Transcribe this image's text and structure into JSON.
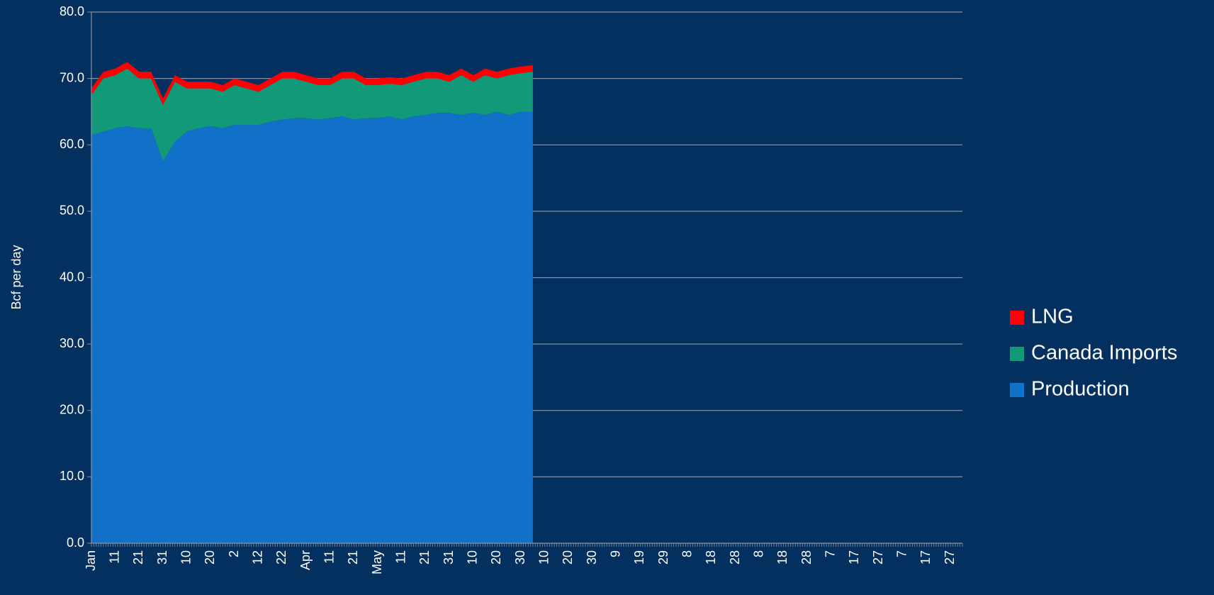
{
  "chart_data": {
    "type": "stacked_area",
    "ylabel": "Bcf per day",
    "categories": [
      "Jan",
      null,
      "11",
      null,
      "21",
      null,
      "31",
      null,
      "10",
      null,
      "20",
      null,
      "2",
      null,
      "12",
      null,
      "22",
      null,
      "Apr",
      null,
      "11",
      null,
      "21",
      null,
      "May",
      null,
      "11",
      null,
      "21",
      null,
      "31",
      null,
      "10",
      null,
      "20",
      null,
      "30",
      null,
      "10",
      null,
      "20",
      null,
      "30",
      null,
      "9",
      null,
      "19",
      null,
      "29",
      null,
      "8",
      null,
      "18",
      null,
      "28",
      null,
      "8",
      null,
      "18",
      null,
      "28",
      null,
      "7",
      null,
      "17",
      null,
      "27",
      null,
      "7",
      null,
      "17",
      null,
      "27"
    ],
    "series": [
      {
        "name": "Production",
        "color": "#1170c8",
        "values": [
          61.5,
          62,
          62.5,
          62.8,
          62.5,
          62.5,
          57.5,
          60.5,
          62,
          62.5,
          62.8,
          62.5,
          63,
          63,
          63,
          63.5,
          63.8,
          64,
          64,
          63.8,
          64,
          64.3,
          63.8,
          64,
          64,
          64.3,
          63.8,
          64.3,
          64.5,
          64.8,
          64.8,
          64.5,
          64.8,
          64.5,
          65,
          64.5,
          65,
          65,
          null,
          null,
          null,
          null,
          null,
          null,
          null,
          null,
          null,
          null,
          null,
          null,
          null,
          null,
          null,
          null,
          null,
          null,
          null,
          null,
          null,
          null,
          null,
          null,
          null,
          null,
          null,
          null,
          null,
          null,
          null,
          null,
          null,
          null,
          null
        ]
      },
      {
        "name": "Canada Imports",
        "color": "#129a78",
        "values": [
          6.0,
          8.0,
          8.0,
          8.7,
          7.5,
          7.5,
          8.5,
          9.0,
          6.5,
          6.0,
          5.7,
          5.5,
          6.0,
          5.5,
          5.0,
          5.5,
          6.2,
          6.0,
          5.5,
          5.2,
          5.0,
          5.7,
          6.2,
          5.0,
          5.0,
          4.9,
          5.2,
          5.2,
          5.5,
          5.2,
          4.7,
          6.0,
          4.7,
          6.0,
          5.0,
          6.0,
          5.8,
          6.0,
          null,
          null,
          null,
          null,
          null,
          null,
          null,
          null,
          null,
          null,
          null,
          null,
          null,
          null,
          null,
          null,
          null,
          null,
          null,
          null,
          null,
          null,
          null,
          null,
          null,
          null,
          null,
          null,
          null,
          null,
          null,
          null,
          null,
          null,
          null
        ]
      },
      {
        "name": "LNG",
        "color": "#ff0000",
        "values": [
          1.0,
          1.0,
          1.0,
          1.0,
          1.0,
          1.0,
          1.0,
          1.0,
          1.0,
          1.0,
          1.0,
          1.0,
          1.0,
          1.0,
          1.0,
          1.0,
          1.0,
          1.0,
          1.0,
          1.0,
          1.0,
          1.0,
          1.0,
          1.0,
          1.0,
          1.0,
          1.0,
          1.0,
          1.0,
          1.0,
          1.0,
          1.0,
          1.0,
          1.0,
          1.0,
          1.0,
          1.0,
          1.0,
          null,
          null,
          null,
          null,
          null,
          null,
          null,
          null,
          null,
          null,
          null,
          null,
          null,
          null,
          null,
          null,
          null,
          null,
          null,
          null,
          null,
          null,
          null,
          null,
          null,
          null,
          null,
          null,
          null,
          null,
          null,
          null,
          null,
          null,
          null
        ]
      }
    ],
    "ylim": [
      0,
      80
    ],
    "yticks": [
      {
        "value": 0,
        "label": "0.0"
      },
      {
        "value": 10,
        "label": "10.0"
      },
      {
        "value": 20,
        "label": "20.0"
      },
      {
        "value": 30,
        "label": "30.0"
      },
      {
        "value": 40,
        "label": "40.0"
      },
      {
        "value": 50,
        "label": "50.0"
      },
      {
        "value": 60,
        "label": "60.0"
      },
      {
        "value": 70,
        "label": "70.0"
      },
      {
        "value": 80,
        "label": "80.0"
      }
    ],
    "grid": true,
    "legend": "right"
  }
}
